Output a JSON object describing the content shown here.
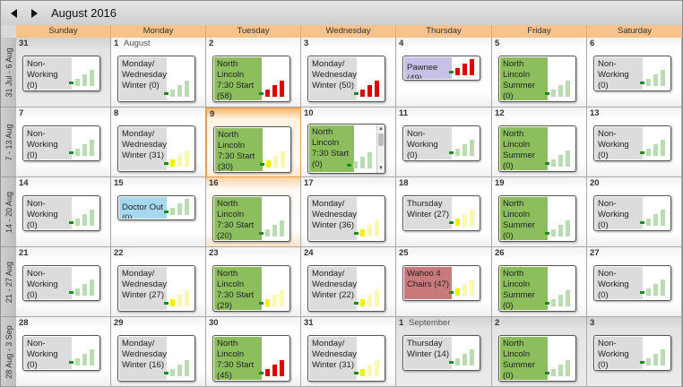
{
  "header": {
    "month_title": "August 2016",
    "prev_icon": "triangle-left-icon",
    "next_icon": "triangle-right-icon"
  },
  "day_names": [
    "Sunday",
    "Monday",
    "Tuesday",
    "Wednesday",
    "Thursday",
    "Friday",
    "Saturday"
  ],
  "week_labels": [
    "31 Jul - 6 Aug",
    "7 - 13 Aug",
    "14 - 20 Aug",
    "21 - 27 Aug",
    "28 Aug - 3 Sep"
  ],
  "colors": {
    "header_band": "#f8c28b",
    "today_border": "#e69a45",
    "status_red": "#e00000",
    "status_yellow": "#f5f000",
    "status_green": "#1a8f1a",
    "bar_faded_green": "#b9dcb0",
    "bar_faded_yellow": "#fcf7b0",
    "bar_faded_red": "#f6c0c0"
  },
  "colors_bg": {
    "green": "#8dbe5e",
    "gray": "#dcdcdc",
    "blue": "#a8d8f0",
    "purple": "#c7c1e8",
    "red": "#c97a7a"
  },
  "weeks": [
    {
      "days": [
        {
          "day": "31",
          "other": true,
          "appt": {
            "text": "Non-Working (0)",
            "color": "gray",
            "level": 0,
            "tone": "green"
          }
        },
        {
          "day": "1",
          "month_label": "August",
          "appt": {
            "text": "Monday/ Wednesday Winter (0)",
            "color": "gray",
            "level": 0,
            "tone": "green"
          }
        },
        {
          "day": "2",
          "appt": {
            "text": "North Lincoln 7:30 Start (58)",
            "color": "green",
            "level": 4,
            "tone": "red"
          }
        },
        {
          "day": "3",
          "appt": {
            "text": "Monday/ Wednesday Winter (50)",
            "color": "gray",
            "level": 4,
            "tone": "red"
          }
        },
        {
          "day": "4",
          "appt": {
            "text": "Pawnee (49)",
            "color": "purple",
            "level": 4,
            "tone": "red"
          }
        },
        {
          "day": "5",
          "appt": {
            "text": "North Lincoln Summer (0)",
            "color": "green",
            "level": 0,
            "tone": "green"
          }
        },
        {
          "day": "6",
          "appt": {
            "text": "Non-Working (0)",
            "color": "gray",
            "level": 0,
            "tone": "green"
          }
        }
      ]
    },
    {
      "days": [
        {
          "day": "7",
          "appt": {
            "text": "Non-Working (0)",
            "color": "gray",
            "level": 0,
            "tone": "green"
          }
        },
        {
          "day": "8",
          "appt": {
            "text": "Monday/ Wednesday Winter (31)",
            "color": "gray",
            "level": 2,
            "tone": "yellow"
          }
        },
        {
          "day": "9",
          "today": true,
          "appt": {
            "text": "North Lincoln 7:30 Start (30)",
            "color": "green",
            "level": 2,
            "tone": "yellow"
          }
        },
        {
          "day": "10",
          "scroll": true,
          "appt": {
            "text": "North Lincoln 7:30 Start (0)",
            "color": "green",
            "level": 0,
            "tone": "green"
          }
        },
        {
          "day": "11",
          "appt": {
            "text": "Non-Working (0)",
            "color": "gray",
            "level": 0,
            "tone": "green"
          }
        },
        {
          "day": "12",
          "appt": {
            "text": "North Lincoln Summer (0)",
            "color": "green",
            "level": 0,
            "tone": "green"
          }
        },
        {
          "day": "13",
          "appt": {
            "text": "Non-Working (0)",
            "color": "gray",
            "level": 0,
            "tone": "green"
          }
        }
      ]
    },
    {
      "days": [
        {
          "day": "14",
          "appt": {
            "text": "Non-Working (0)",
            "color": "gray",
            "level": 0,
            "tone": "green"
          }
        },
        {
          "day": "15",
          "appt": {
            "text": "Doctor Out (0)",
            "color": "blue",
            "level": 0,
            "tone": "green"
          }
        },
        {
          "day": "16",
          "today_next": true,
          "appt": {
            "text": "North Lincoln 7:30 Start (20)",
            "color": "green",
            "level": 1,
            "tone": "green"
          }
        },
        {
          "day": "17",
          "appt": {
            "text": "Monday/ Wednesday Winter (36)",
            "color": "gray",
            "level": 2,
            "tone": "yellow"
          }
        },
        {
          "day": "18",
          "appt": {
            "text": "Thursday Winter (27)",
            "color": "gray",
            "level": 2,
            "tone": "yellow"
          }
        },
        {
          "day": "19",
          "appt": {
            "text": "North Lincoln Summer (0)",
            "color": "green",
            "level": 0,
            "tone": "green"
          }
        },
        {
          "day": "20",
          "appt": {
            "text": "Non-Working (0)",
            "color": "gray",
            "level": 0,
            "tone": "green"
          }
        }
      ]
    },
    {
      "days": [
        {
          "day": "21",
          "appt": {
            "text": "Non-Working (0)",
            "color": "gray",
            "level": 0,
            "tone": "green"
          }
        },
        {
          "day": "22",
          "appt": {
            "text": "Monday/ Wednesday Winter (27)",
            "color": "gray",
            "level": 2,
            "tone": "yellow"
          }
        },
        {
          "day": "23",
          "appt": {
            "text": "North Lincoln 7:30 Start (29)",
            "color": "green",
            "level": 2,
            "tone": "yellow"
          }
        },
        {
          "day": "24",
          "appt": {
            "text": "Monday/ Wednesday Winter (22)",
            "color": "gray",
            "level": 2,
            "tone": "yellow"
          }
        },
        {
          "day": "25",
          "appt": {
            "text": "Wahoo 4 Chairs (47)",
            "color": "red",
            "level": 2,
            "tone": "yellow"
          }
        },
        {
          "day": "26",
          "appt": {
            "text": "North Lincoln Summer (0)",
            "color": "green",
            "level": 0,
            "tone": "green"
          }
        },
        {
          "day": "27",
          "appt": {
            "text": "Non-Working (0)",
            "color": "gray",
            "level": 0,
            "tone": "green"
          }
        }
      ]
    },
    {
      "days": [
        {
          "day": "28",
          "appt": {
            "text": "Non-Working (0)",
            "color": "gray",
            "level": 0,
            "tone": "green"
          }
        },
        {
          "day": "29",
          "appt": {
            "text": "Monday/ Wednesday Winter (16)",
            "color": "gray",
            "level": 1,
            "tone": "green"
          }
        },
        {
          "day": "30",
          "appt": {
            "text": "North Lincoln 7:30 Start (45)",
            "color": "green",
            "level": 4,
            "tone": "red"
          }
        },
        {
          "day": "31",
          "appt": {
            "text": "Monday/ Wednesday Winter (31)",
            "color": "gray",
            "level": 2,
            "tone": "yellow"
          }
        },
        {
          "day": "1",
          "month_label": "September",
          "other": true,
          "appt": {
            "text": "Thursday Winter (14)",
            "color": "gray",
            "level": 1,
            "tone": "green"
          }
        },
        {
          "day": "2",
          "other": true,
          "appt": {
            "text": "North Lincoln Summer (0)",
            "color": "green",
            "level": 0,
            "tone": "green"
          }
        },
        {
          "day": "3",
          "other": true,
          "appt": {
            "text": "Non-Working (0)",
            "color": "gray",
            "level": 0,
            "tone": "green"
          }
        }
      ]
    }
  ]
}
